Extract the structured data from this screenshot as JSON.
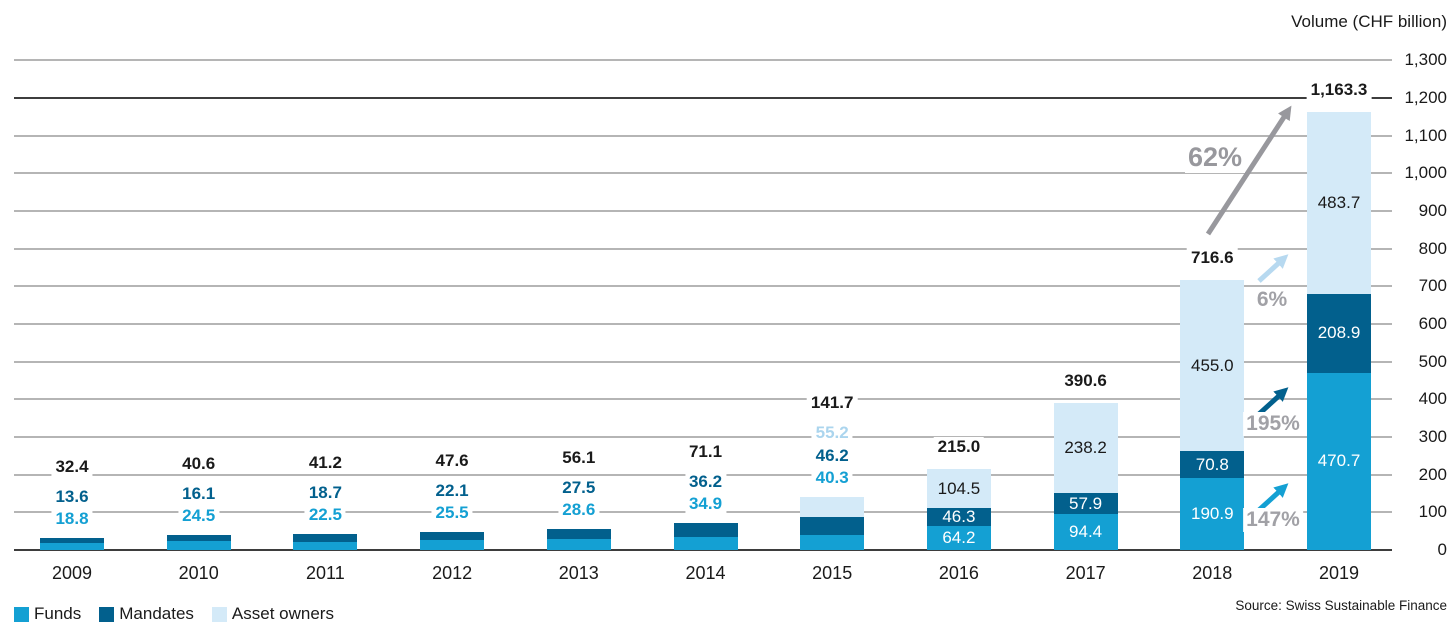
{
  "chart_data": {
    "type": "bar",
    "stacked": true,
    "title": "Volume (CHF billion)",
    "source": "Source: Swiss Sustainable Finance",
    "categories": [
      "2009",
      "2010",
      "2011",
      "2012",
      "2013",
      "2014",
      "2015",
      "2016",
      "2017",
      "2018",
      "2019"
    ],
    "series": [
      {
        "name": "Funds",
        "color": "#14A0D3",
        "values": [
          18.8,
          24.5,
          22.5,
          25.5,
          28.6,
          34.9,
          40.3,
          64.2,
          94.4,
          190.9,
          470.7
        ]
      },
      {
        "name": "Mandates",
        "color": "#02608D",
        "values": [
          13.6,
          16.1,
          18.7,
          22.1,
          27.5,
          36.2,
          46.2,
          46.3,
          57.9,
          70.8,
          208.9
        ]
      },
      {
        "name": "Asset owners",
        "color": "#D4EAF8",
        "values": [
          0,
          0,
          0,
          0,
          0,
          0,
          55.2,
          104.5,
          238.2,
          455.0,
          483.7
        ]
      }
    ],
    "totals": [
      "32.4",
      "40.6",
      "41.2",
      "47.6",
      "56.1",
      "71.1",
      "141.7",
      "215.0",
      "390.6",
      "716.6",
      "1,163.3"
    ],
    "value_labels_inside_from_index": 7,
    "y_axis": {
      "min": 0,
      "max": 1300,
      "step": 100,
      "tick_labels": [
        "1,300",
        "1,200",
        "1,100",
        "1,000",
        "900",
        "800",
        "700",
        "600",
        "500",
        "400",
        "300",
        "200",
        "100",
        "0"
      ],
      "emphasized_gridlines": [
        0,
        1200
      ]
    },
    "annotations": [
      {
        "label": "62%",
        "arrow_color": "#98989D",
        "text_color": "#98989D"
      },
      {
        "label": "6%",
        "arrow_color": "#B7D9F0",
        "text_color": "#A1A1A6"
      },
      {
        "label": "195%",
        "arrow_color": "#02608D",
        "text_color": "#A1A1A6"
      },
      {
        "label": "147%",
        "arrow_color": "#14A0D3",
        "text_color": "#A1A1A6"
      }
    ],
    "label_text_colors": {
      "funds": "#14A0D3",
      "mandates": "#02608D",
      "asset_owners": "#ABD5EE",
      "inside_on_dark": "#FFFFFF",
      "inside_on_light": "#1A1A1A"
    }
  },
  "legend": {
    "items": [
      {
        "label": "Funds",
        "color": "#14A0D3"
      },
      {
        "label": "Mandates",
        "color": "#02608D"
      },
      {
        "label": "Asset owners",
        "color": "#D4EAF8"
      }
    ]
  }
}
